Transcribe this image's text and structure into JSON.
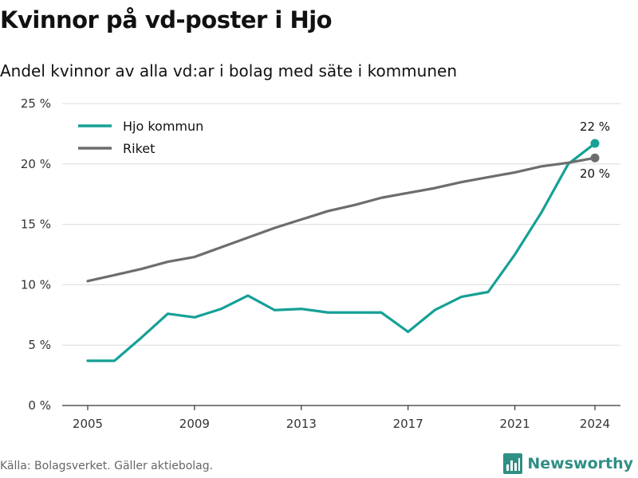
{
  "title": "Kvinnor på vd-poster i Hjo",
  "subtitle": "Andel kvinnor av alla vd:ar i bolag med säte i kommunen",
  "source": "Källa: Bolagsverket. Gäller aktiebolag.",
  "brand": "Newsworthy",
  "colors": {
    "hjo": "#16a096",
    "riket": "#6d6d6d",
    "grid": "#dcdcdc",
    "axis": "#333333"
  },
  "chart_data": {
    "type": "line",
    "x": [
      2005,
      2006,
      2007,
      2008,
      2009,
      2010,
      2011,
      2012,
      2013,
      2014,
      2015,
      2016,
      2017,
      2018,
      2019,
      2020,
      2021,
      2022,
      2023,
      2024
    ],
    "x_ticks": [
      2005,
      2009,
      2013,
      2017,
      2021,
      2024
    ],
    "ylim": [
      0,
      25
    ],
    "y_ticks": [
      0,
      5,
      10,
      15,
      20,
      25
    ],
    "y_tick_labels": [
      "0 %",
      "5 %",
      "10 %",
      "15 %",
      "20 %",
      "25 %"
    ],
    "grid": true,
    "legend_position": "top-left",
    "series": [
      {
        "name": "Hjo kommun",
        "color": "#16a096",
        "values": [
          3.7,
          3.7,
          5.6,
          7.6,
          7.3,
          8.0,
          9.1,
          7.9,
          8.0,
          7.7,
          7.7,
          7.7,
          6.1,
          7.9,
          9.0,
          9.4,
          12.5,
          16.0,
          20.0,
          21.7
        ],
        "end_label": "22 %"
      },
      {
        "name": "Riket",
        "color": "#6d6d6d",
        "values": [
          10.3,
          10.8,
          11.3,
          11.9,
          12.3,
          13.1,
          13.9,
          14.7,
          15.4,
          16.1,
          16.6,
          17.2,
          17.6,
          18.0,
          18.5,
          18.9,
          19.3,
          19.8,
          20.1,
          20.5
        ],
        "end_label": "20 %"
      }
    ]
  }
}
